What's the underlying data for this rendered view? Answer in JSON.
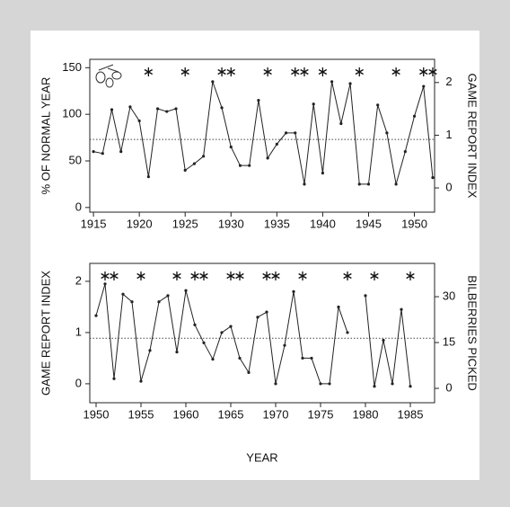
{
  "chart_data": [
    {
      "type": "line",
      "y_label": "% OF NORMAL YEAR",
      "y2_label": "GAME REPORT INDEX",
      "x": [
        1915,
        1916,
        1917,
        1918,
        1919,
        1920,
        1921,
        1922,
        1923,
        1924,
        1925,
        1926,
        1927,
        1928,
        1929,
        1930,
        1931,
        1932,
        1933,
        1934,
        1935,
        1936,
        1937,
        1938,
        1939,
        1940,
        1941,
        1942,
        1943,
        1944,
        1945,
        1946,
        1947,
        1948,
        1949,
        1950,
        1951,
        1952
      ],
      "values": [
        60,
        58,
        105,
        60,
        108,
        93,
        33,
        106,
        103,
        106,
        40,
        47,
        55,
        135,
        107,
        65,
        45,
        45,
        115,
        53,
        68,
        80,
        80,
        25,
        111,
        37,
        135,
        90,
        133,
        25,
        25,
        110,
        80,
        25,
        60,
        98,
        130,
        32
      ],
      "color": "#222222",
      "events": [
        1921,
        1925,
        1929,
        1930,
        1934,
        1937,
        1938,
        1940,
        1944,
        1948,
        1951,
        1952
      ],
      "reference_line": 73,
      "xlim": [
        1914.6,
        1952.2
      ],
      "xticks": [
        1915,
        1920,
        1925,
        1930,
        1935,
        1940,
        1945,
        1950
      ],
      "ylim": [
        -5,
        159
      ],
      "yticks": [
        0,
        50,
        100,
        150
      ],
      "y2lim": [
        -0.46,
        2.44
      ],
      "y2ticks": [
        0,
        1,
        2
      ]
    },
    {
      "type": "line",
      "y_label": "GAME REPORT INDEX",
      "y2_label": "BILBERRIES PICKED",
      "x_label": "YEAR",
      "x": [
        1950,
        1951,
        1952,
        1953,
        1954,
        1955,
        1956,
        1957,
        1958,
        1959,
        1960,
        1961,
        1962,
        1963,
        1964,
        1965,
        1966,
        1967,
        1968,
        1969,
        1970,
        1971,
        1972,
        1973,
        1974,
        1975,
        1976,
        1977,
        1978,
        1979,
        1980,
        1981,
        1982,
        1983,
        1984,
        1985
      ],
      "values": [
        1.33,
        1.95,
        0.1,
        1.75,
        1.6,
        0.05,
        0.65,
        1.6,
        1.72,
        0.62,
        1.82,
        1.15,
        0.8,
        0.48,
        1.0,
        1.12,
        0.5,
        0.22,
        1.3,
        1.4,
        0.0,
        0.75,
        1.8,
        0.5,
        0.5,
        0.0,
        0.0,
        1.5,
        1.0,
        null,
        1.72,
        -0.05,
        0.85,
        0.0,
        1.45,
        -0.05
      ],
      "color": "#222222",
      "events": [
        1951,
        1952,
        1955,
        1959,
        1961,
        1962,
        1965,
        1966,
        1969,
        1970,
        1973,
        1978,
        1981,
        1985
      ],
      "reference_line": 0.89,
      "xlim": [
        1949.3,
        1987.7
      ],
      "xticks": [
        1950,
        1955,
        1960,
        1965,
        1970,
        1975,
        1980,
        1985
      ],
      "ylim": [
        -0.37,
        2.35
      ],
      "yticks": [
        0,
        1,
        2
      ],
      "y2lim": [
        -4.7,
        40.9
      ],
      "y2ticks": [
        0,
        15,
        30
      ]
    }
  ]
}
